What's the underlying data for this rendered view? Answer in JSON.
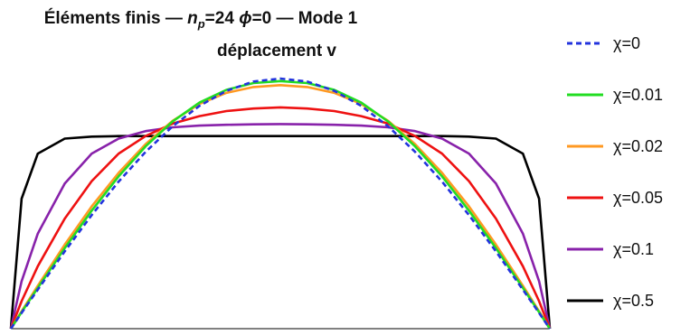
{
  "chart_data": {
    "type": "line",
    "title_parts": {
      "a": "Éléments finis  — ",
      "n": "n",
      "p": "p",
      "b": "=24    ",
      "phi": "ϕ",
      "c": "=0  — Mode 1"
    },
    "subtitle": "déplacement v",
    "xlim": [
      0,
      1
    ],
    "ylim": [
      0,
      1
    ],
    "grid": false,
    "legend_position": "right",
    "x": [
      0,
      0.02,
      0.05,
      0.1,
      0.15,
      0.2,
      0.25,
      0.3,
      0.35,
      0.4,
      0.45,
      0.5,
      0.55,
      0.6,
      0.65,
      0.7,
      0.75,
      0.8,
      0.85,
      0.9,
      0.95,
      0.98,
      1
    ],
    "series": [
      {
        "name": "χ=0",
        "color": "#2233dd",
        "dashed": true,
        "values": [
          0,
          0.063,
          0.156,
          0.309,
          0.454,
          0.588,
          0.707,
          0.809,
          0.891,
          0.951,
          0.988,
          1.0,
          0.988,
          0.951,
          0.891,
          0.809,
          0.707,
          0.588,
          0.454,
          0.309,
          0.156,
          0.063,
          0
        ]
      },
      {
        "name": "χ=0.01",
        "color": "#22dd22",
        "dashed": false,
        "values": [
          0,
          0.066,
          0.163,
          0.322,
          0.472,
          0.609,
          0.729,
          0.828,
          0.904,
          0.955,
          0.982,
          0.99,
          0.982,
          0.955,
          0.904,
          0.828,
          0.729,
          0.609,
          0.472,
          0.322,
          0.163,
          0.066,
          0
        ]
      },
      {
        "name": "χ=0.02",
        "color": "#ff9922",
        "dashed": false,
        "values": [
          0,
          0.072,
          0.178,
          0.348,
          0.506,
          0.645,
          0.764,
          0.86,
          0.93,
          0.976,
          1.0,
          1.008,
          1.0,
          0.976,
          0.93,
          0.86,
          0.764,
          0.645,
          0.506,
          0.348,
          0.178,
          0.072,
          0
        ],
        "scale": 0.966
      },
      {
        "name": "χ=0.05",
        "color": "#ee1111",
        "dashed": false,
        "values": [
          0,
          0.11,
          0.25,
          0.44,
          0.59,
          0.7,
          0.77,
          0.82,
          0.85,
          0.87,
          0.88,
          0.885,
          0.88,
          0.87,
          0.85,
          0.82,
          0.77,
          0.7,
          0.59,
          0.44,
          0.25,
          0.11,
          0
        ]
      },
      {
        "name": "χ=0.1",
        "color": "#8822aa",
        "dashed": false,
        "values": [
          0,
          0.19,
          0.38,
          0.58,
          0.7,
          0.76,
          0.79,
          0.805,
          0.812,
          0.815,
          0.817,
          0.818,
          0.817,
          0.815,
          0.812,
          0.805,
          0.79,
          0.76,
          0.7,
          0.58,
          0.38,
          0.19,
          0
        ]
      },
      {
        "name": "χ=0.5",
        "color": "#000000",
        "dashed": false,
        "values": [
          0,
          0.52,
          0.7,
          0.76,
          0.768,
          0.77,
          0.77,
          0.77,
          0.77,
          0.77,
          0.77,
          0.77,
          0.77,
          0.77,
          0.77,
          0.77,
          0.77,
          0.77,
          0.768,
          0.76,
          0.7,
          0.52,
          0
        ]
      }
    ]
  }
}
